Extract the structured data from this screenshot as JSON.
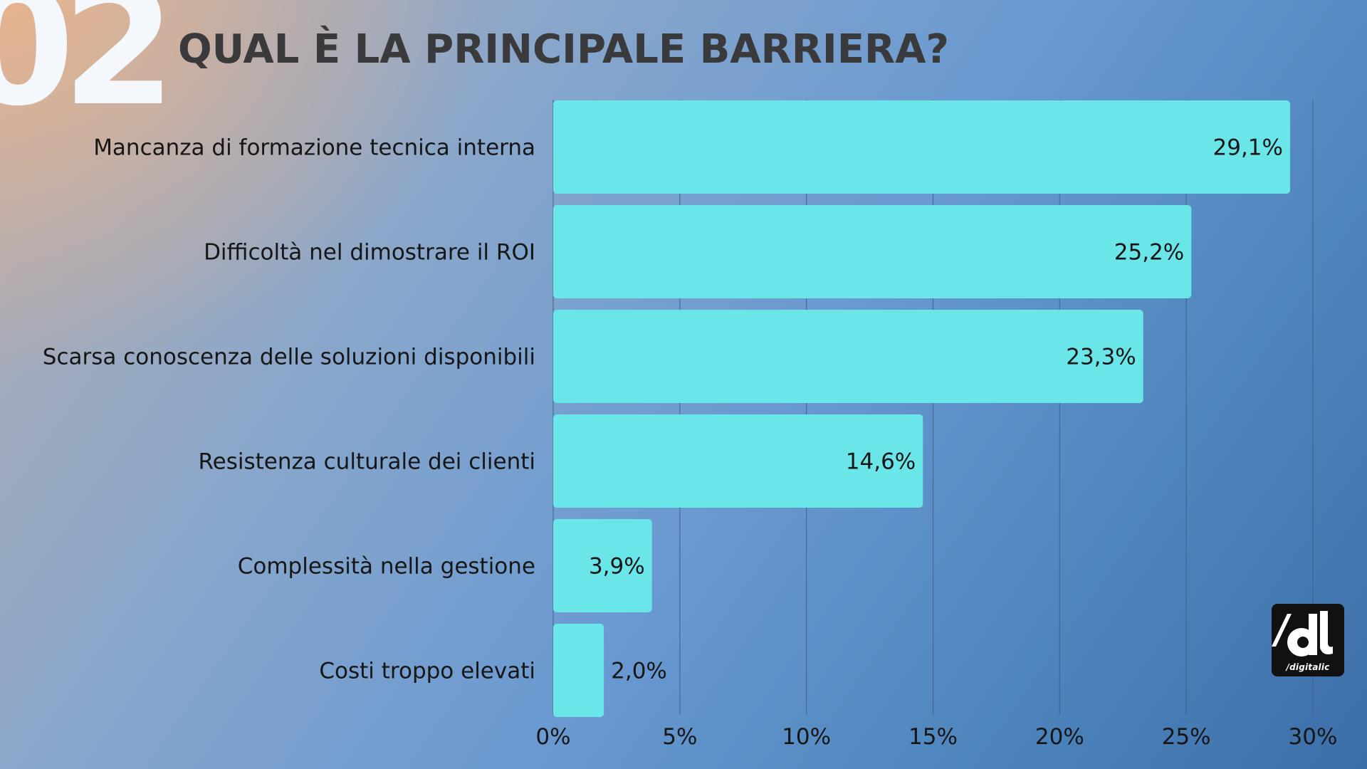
{
  "header": {
    "number": "02",
    "title": "QUAL È LA PRINCIPALE BARRIERA?"
  },
  "colors": {
    "bar": "#6ae5e8",
    "grid": "#3f5f86",
    "text": "#161616"
  },
  "chart_data": {
    "type": "bar",
    "orientation": "horizontal",
    "title": "QUAL È LA PRINCIPALE BARRIERA?",
    "categories": [
      "Mancanza di formazione tecnica interna",
      "Difficoltà nel dimostrare il ROI",
      "Scarsa conoscenza delle soluzioni disponibili",
      "Resistenza culturale dei clienti",
      "Complessità nella gestione",
      "Costi troppo elevati"
    ],
    "values": [
      29.1,
      25.2,
      23.3,
      14.6,
      3.9,
      2.0
    ],
    "value_labels": [
      "29,1%",
      "25,2%",
      "23,3%",
      "14,6%",
      "3,9%",
      "2,0%"
    ],
    "xlim": [
      0,
      30
    ],
    "x_ticks": [
      0,
      5,
      10,
      15,
      20,
      25,
      30
    ],
    "x_tick_labels": [
      "0%",
      "5%",
      "10%",
      "15%",
      "20%",
      "25%",
      "30%"
    ],
    "grid": true,
    "legend": "none"
  },
  "logo": {
    "text": "/digitalic",
    "icon": "dl-logo-mark"
  }
}
